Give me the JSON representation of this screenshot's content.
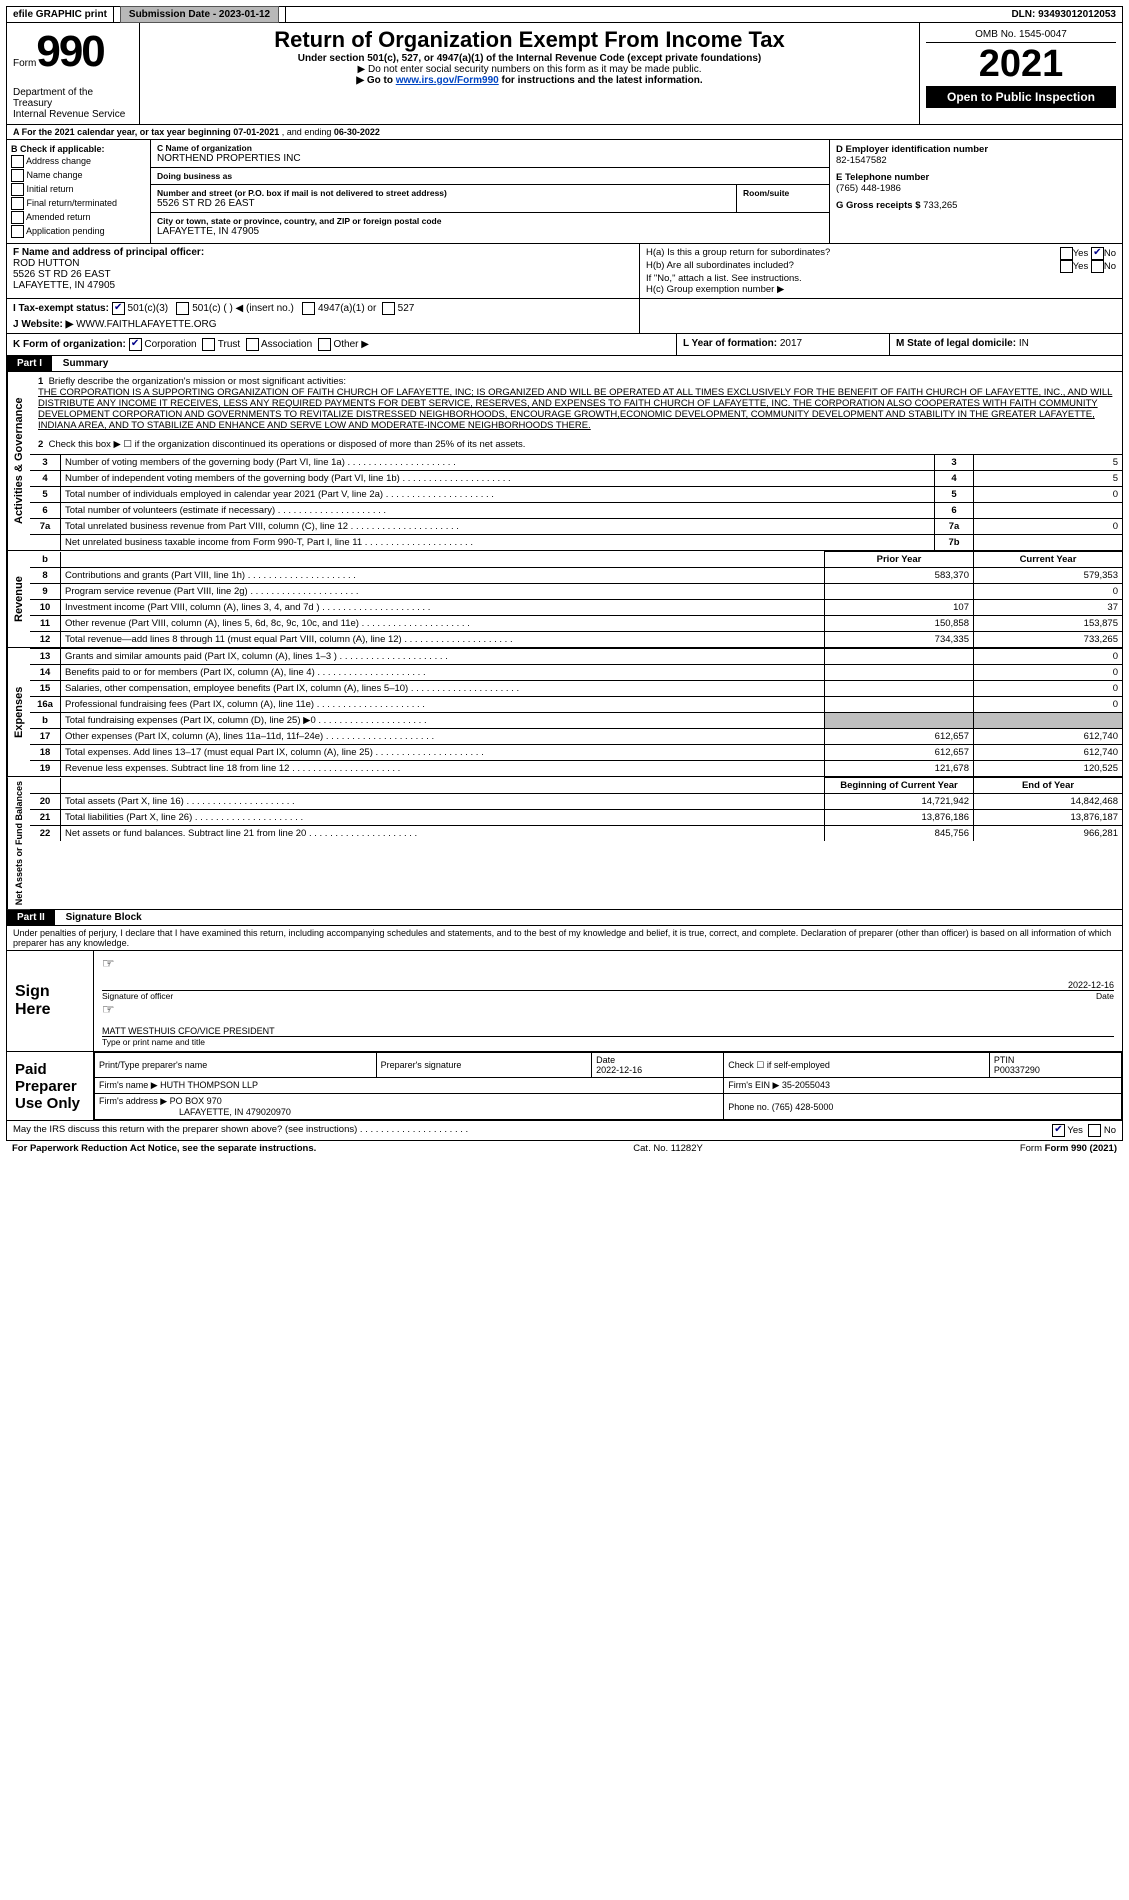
{
  "topbar": {
    "efile": "efile GRAPHIC print",
    "submission_label": "Submission Date - ",
    "submission_date": "2023-01-12",
    "dln_label": "DLN: ",
    "dln": "93493012012053"
  },
  "header": {
    "form_word": "Form",
    "form_num": "990",
    "dept1": "Department of the Treasury",
    "dept2": "Internal Revenue Service",
    "title": "Return of Organization Exempt From Income Tax",
    "sub1": "Under section 501(c), 527, or 4947(a)(1) of the Internal Revenue Code (except private foundations)",
    "sub2": "▶ Do not enter social security numbers on this form as it may be made public.",
    "sub3a": "▶ Go to ",
    "sub3_link": "www.irs.gov/Form990",
    "sub3b": " for instructions and the latest information.",
    "omb": "OMB No. 1545-0047",
    "year": "2021",
    "openpub": "Open to Public Inspection"
  },
  "rowA": {
    "text_a": "A For the 2021 calendar year, or tax year beginning ",
    "begin": "07-01-2021",
    "mid": " , and ending ",
    "end": "06-30-2022"
  },
  "colB": {
    "hdr": "B Check if applicable:",
    "opts": [
      "Address change",
      "Name change",
      "Initial return",
      "Final return/terminated",
      "Amended return",
      "Application pending"
    ]
  },
  "colC": {
    "name_lbl": "C Name of organization",
    "name": "NORTHEND PROPERTIES INC",
    "dba_lbl": "Doing business as",
    "dba": "",
    "street_lbl": "Number and street (or P.O. box if mail is not delivered to street address)",
    "street": "5526 ST RD 26 EAST",
    "room_lbl": "Room/suite",
    "room": "",
    "city_lbl": "City or town, state or province, country, and ZIP or foreign postal code",
    "city": "LAFAYETTE, IN  47905"
  },
  "colD": {
    "ein_lbl": "D Employer identification number",
    "ein": "82-1547582",
    "tel_lbl": "E Telephone number",
    "tel": "(765) 448-1986",
    "gross_lbl": "G Gross receipts $ ",
    "gross": "733,265"
  },
  "rowF": {
    "lbl": "F Name and address of principal officer:",
    "name": "ROD HUTTON",
    "addr1": "5526 ST RD 26 EAST",
    "addr2": "LAFAYETTE, IN  47905"
  },
  "rowH": {
    "ha": "H(a)  Is this a group return for subordinates?",
    "hb": "H(b)  Are all subordinates included?",
    "hb2": "If \"No,\" attach a list. See instructions.",
    "hc": "H(c)  Group exemption number ▶",
    "yes": "Yes",
    "no": "No"
  },
  "rowI": {
    "lbl": "I  Tax-exempt status:",
    "o1": "501(c)(3)",
    "o2": "501(c) (  ) ◀ (insert no.)",
    "o3": "4947(a)(1) or",
    "o4": "527"
  },
  "rowJ": {
    "lbl": "J  Website: ▶",
    "val": "WWW.FAITHLAFAYETTE.ORG"
  },
  "rowK": {
    "lbl": "K Form of organization:",
    "o1": "Corporation",
    "o2": "Trust",
    "o3": "Association",
    "o4": "Other ▶"
  },
  "rowL": {
    "lbl": "L Year of formation: ",
    "val": "2017"
  },
  "rowM": {
    "lbl": "M State of legal domicile: ",
    "val": "IN"
  },
  "partI": {
    "hdr": "Part I",
    "title": "Summary",
    "side_ag": "Activities & Governance",
    "l1_lbl": "Briefly describe the organization's mission or most significant activities:",
    "l1": "THE CORPORATION IS A SUPPORTING ORGANIZATION OF FAITH CHURCH OF LAFAYETTE, INC; IS ORGANIZED AND WILL BE OPERATED AT ALL TIMES EXCLUSIVELY FOR THE BENEFIT OF FAITH CHURCH OF LAFAYETTE, INC., AND WILL DISTRIBUTE ANY INCOME IT RECEIVES, LESS ANY REQUIRED PAYMENTS FOR DEBT SERVICE, RESERVES, AND EXPENSES TO FAITH CHURCH OF LAFAYETTE, INC. THE CORPORATION ALSO COOPERATES WITH FAITH COMMUNITY DEVELOPMENT CORPORATION AND GOVERNMENTS TO REVITALIZE DISTRESSED NEIGHBORHOODS, ENCOURAGE GROWTH,ECONOMIC DEVELOPMENT, COMMUNITY DEVELOPMENT AND STABILITY IN THE GREATER LAFAYETTE, INDIANA AREA, AND TO STABILIZE AND ENHANCE AND SERVE LOW AND MODERATE-INCOME NEIGHBORHOODS THERE.",
    "l2": "Check this box ▶ ☐ if the organization discontinued its operations or disposed of more than 25% of its net assets.",
    "lines_small": [
      {
        "n": "3",
        "d": "Number of voting members of the governing body (Part VI, line 1a)",
        "box": "3",
        "v": "5"
      },
      {
        "n": "4",
        "d": "Number of independent voting members of the governing body (Part VI, line 1b)",
        "box": "4",
        "v": "5"
      },
      {
        "n": "5",
        "d": "Total number of individuals employed in calendar year 2021 (Part V, line 2a)",
        "box": "5",
        "v": "0"
      },
      {
        "n": "6",
        "d": "Total number of volunteers (estimate if necessary)",
        "box": "6",
        "v": ""
      },
      {
        "n": "7a",
        "d": "Total unrelated business revenue from Part VIII, column (C), line 12",
        "box": "7a",
        "v": "0"
      },
      {
        "n": "",
        "d": "Net unrelated business taxable income from Form 990-T, Part I, line 11",
        "box": "7b",
        "v": ""
      }
    ],
    "side_rev": "Revenue",
    "yr_prior": "Prior Year",
    "yr_cur": "Current Year",
    "rev": [
      {
        "n": "8",
        "d": "Contributions and grants (Part VIII, line 1h)",
        "p": "583,370",
        "c": "579,353"
      },
      {
        "n": "9",
        "d": "Program service revenue (Part VIII, line 2g)",
        "p": "",
        "c": "0"
      },
      {
        "n": "10",
        "d": "Investment income (Part VIII, column (A), lines 3, 4, and 7d )",
        "p": "107",
        "c": "37"
      },
      {
        "n": "11",
        "d": "Other revenue (Part VIII, column (A), lines 5, 6d, 8c, 9c, 10c, and 11e)",
        "p": "150,858",
        "c": "153,875"
      },
      {
        "n": "12",
        "d": "Total revenue—add lines 8 through 11 (must equal Part VIII, column (A), line 12)",
        "p": "734,335",
        "c": "733,265"
      }
    ],
    "side_exp": "Expenses",
    "exp": [
      {
        "n": "13",
        "d": "Grants and similar amounts paid (Part IX, column (A), lines 1–3 )",
        "p": "",
        "c": "0"
      },
      {
        "n": "14",
        "d": "Benefits paid to or for members (Part IX, column (A), line 4)",
        "p": "",
        "c": "0"
      },
      {
        "n": "15",
        "d": "Salaries, other compensation, employee benefits (Part IX, column (A), lines 5–10)",
        "p": "",
        "c": "0"
      },
      {
        "n": "16a",
        "d": "Professional fundraising fees (Part IX, column (A), line 11e)",
        "p": "",
        "c": "0"
      },
      {
        "n": "b",
        "d": "Total fundraising expenses (Part IX, column (D), line 25) ▶0",
        "p": "shade",
        "c": "shade"
      },
      {
        "n": "17",
        "d": "Other expenses (Part IX, column (A), lines 11a–11d, 11f–24e)",
        "p": "612,657",
        "c": "612,740"
      },
      {
        "n": "18",
        "d": "Total expenses. Add lines 13–17 (must equal Part IX, column (A), line 25)",
        "p": "612,657",
        "c": "612,740"
      },
      {
        "n": "19",
        "d": "Revenue less expenses. Subtract line 18 from line 12",
        "p": "121,678",
        "c": "120,525"
      }
    ],
    "side_na": "Net Assets or Fund Balances",
    "yr_beg": "Beginning of Current Year",
    "yr_end": "End of Year",
    "na": [
      {
        "n": "20",
        "d": "Total assets (Part X, line 16)",
        "p": "14,721,942",
        "c": "14,842,468"
      },
      {
        "n": "21",
        "d": "Total liabilities (Part X, line 26)",
        "p": "13,876,186",
        "c": "13,876,187"
      },
      {
        "n": "22",
        "d": "Net assets or fund balances. Subtract line 21 from line 20",
        "p": "845,756",
        "c": "966,281"
      }
    ]
  },
  "partII": {
    "hdr": "Part II",
    "title": "Signature Block",
    "decl": "Under penalties of perjury, I declare that I have examined this return, including accompanying schedules and statements, and to the best of my knowledge and belief, it is true, correct, and complete. Declaration of preparer (other than officer) is based on all information of which preparer has any knowledge.",
    "sign": "Sign Here",
    "sig_lbl": "Signature of officer",
    "date_lbl": "Date",
    "date": "2022-12-16",
    "name": "MATT WESTHUIS CFO/VICE PRESIDENT",
    "name_lbl": "Type or print name and title",
    "paid": "Paid Preparer Use Only",
    "col_prep": "Print/Type preparer's name",
    "col_sig": "Preparer's signature",
    "col_date": "Date",
    "pdate": "2022-12-16",
    "col_self": "Check ☐ if self-employed",
    "col_ptin": "PTIN",
    "ptin": "P00337290",
    "firm_name_lbl": "Firm's name    ▶",
    "firm_name": "HUTH THOMPSON LLP",
    "firm_ein_lbl": "Firm's EIN ▶",
    "firm_ein": "35-2055043",
    "firm_addr_lbl": "Firm's address ▶",
    "firm_addr": "PO BOX 970",
    "firm_addr2": "LAFAYETTE, IN  479020970",
    "firm_tel_lbl": "Phone no. ",
    "firm_tel": "(765) 428-5000",
    "discuss": "May the IRS discuss this return with the preparer shown above? (see instructions)",
    "yes": "Yes",
    "no": "No"
  },
  "footer": {
    "pra": "For Paperwork Reduction Act Notice, see the separate instructions.",
    "cat": "Cat. No. 11282Y",
    "form": "Form 990 (2021)"
  }
}
